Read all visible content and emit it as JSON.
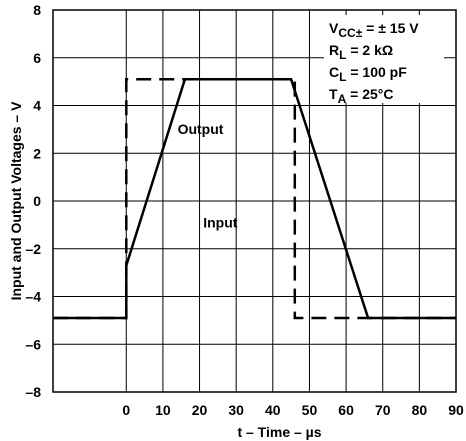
{
  "chart_data": {
    "type": "line",
    "xlabel": "t – Time – µs",
    "ylabel": "Input and Output Voltages – V",
    "xlim": [
      -20,
      90
    ],
    "ylim": [
      -8,
      8
    ],
    "xticks": [
      0,
      10,
      20,
      30,
      40,
      50,
      60,
      70,
      80,
      90
    ],
    "yticks": [
      8,
      6,
      4,
      2,
      0,
      -2,
      -4,
      -6,
      -8
    ],
    "xtick_labels": [
      "0",
      "10",
      "20",
      "30",
      "40",
      "50",
      "60",
      "70",
      "80",
      "90"
    ],
    "ytick_labels": [
      "8",
      "6",
      "4",
      "2",
      "0",
      "–2",
      "–4",
      "–6",
      "–8"
    ],
    "grid": true,
    "series": [
      {
        "name": "Output",
        "style": "solid",
        "x": [
          -20,
          0,
          0,
          16,
          45,
          66,
          90
        ],
        "y": [
          -4.9,
          -4.9,
          -2.7,
          5.1,
          5.1,
          -4.9,
          -4.9
        ]
      },
      {
        "name": "Input",
        "style": "dashed",
        "x": [
          -20,
          0,
          0,
          46,
          46,
          90
        ],
        "y": [
          -4.9,
          -4.9,
          5.1,
          5.1,
          -4.9,
          -4.9
        ]
      }
    ],
    "annotations": [
      {
        "text": "Output",
        "x": 14,
        "y": 2.8
      },
      {
        "text": "Input",
        "x": 21,
        "y": -1.1
      }
    ],
    "conditions": {
      "vcc": {
        "main": "V",
        "sub": "CC",
        "supsub": "±",
        "rest": " = ± 15 V"
      },
      "rl": {
        "main": "R",
        "sub": "L",
        "rest": " = 2 kΩ"
      },
      "cl": {
        "main": "C",
        "sub": "L",
        "rest": " = 100 pF"
      },
      "ta": {
        "main": "T",
        "sub": "A",
        "rest": " = 25°C"
      }
    }
  }
}
